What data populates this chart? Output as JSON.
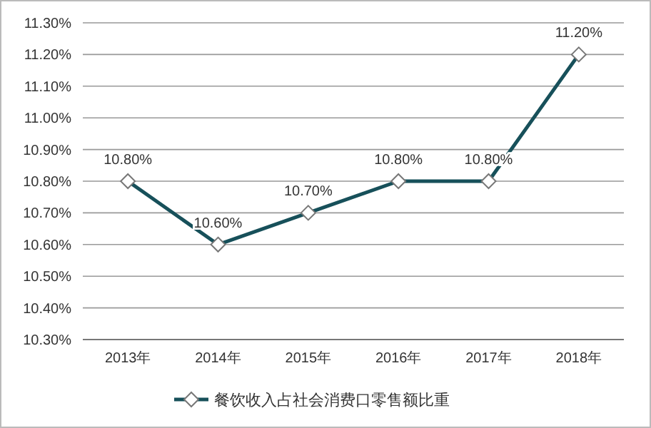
{
  "chart_data": {
    "type": "line",
    "categories": [
      "2013年",
      "2014年",
      "2015年",
      "2016年",
      "2017年",
      "2018年"
    ],
    "series": [
      {
        "name": "餐饮收入占社会消费口零售额比重",
        "color": "#17505a",
        "values": [
          10.8,
          10.6,
          10.7,
          10.8,
          10.8,
          11.2
        ],
        "value_labels": [
          "10.80%",
          "10.60%",
          "10.70%",
          "10.80%",
          "10.80%",
          "11.20%"
        ]
      }
    ],
    "ylim": [
      10.3,
      11.3
    ],
    "yticks": [
      {
        "value": 10.3,
        "label": "10.30%"
      },
      {
        "value": 10.4,
        "label": "10.40%"
      },
      {
        "value": 10.5,
        "label": "10.50%"
      },
      {
        "value": 10.6,
        "label": "10.60%"
      },
      {
        "value": 10.7,
        "label": "10.70%"
      },
      {
        "value": 10.8,
        "label": "10.80%"
      },
      {
        "value": 10.9,
        "label": "10.90%"
      },
      {
        "value": 11.0,
        "label": "11.00%"
      },
      {
        "value": 11.1,
        "label": "11.10%"
      },
      {
        "value": 11.2,
        "label": "11.20%"
      },
      {
        "value": 11.3,
        "label": "11.30%"
      }
    ],
    "grid": "y",
    "legend": "bottom",
    "marker": "diamond",
    "line_style": "solid"
  }
}
